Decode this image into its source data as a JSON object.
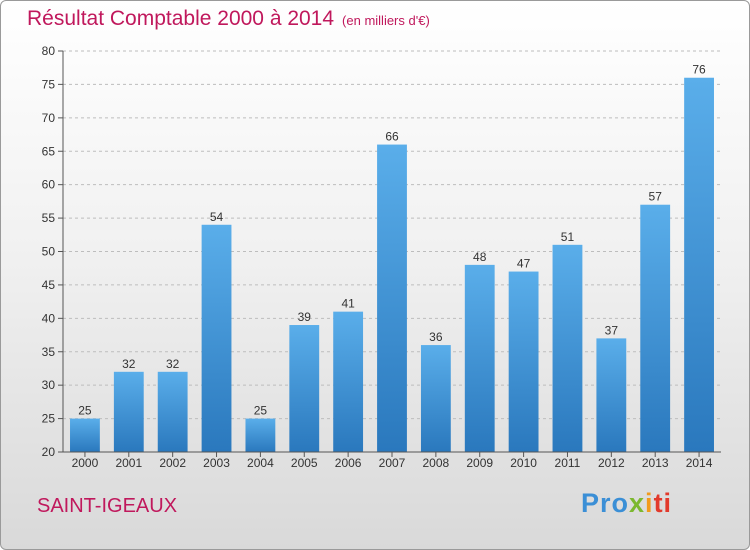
{
  "title": "Résultat Comptable 2000 à 2014",
  "subtitle": "(en milliers d'€)",
  "commune": "SAINT-IGEAUX",
  "logo": {
    "p1": "Pro",
    "p2": "x",
    "p3": "i",
    "p4": "ti"
  },
  "colors": {
    "bar": "#3a8fd8",
    "title": "#c0185c",
    "axis": "#555555",
    "grid": "#bdbdbd"
  },
  "chart_data": {
    "type": "bar",
    "title": "Résultat Comptable 2000 à 2014",
    "subtitle": "(en milliers d'€)",
    "categories": [
      "2000",
      "2001",
      "2002",
      "2003",
      "2004",
      "2005",
      "2006",
      "2007",
      "2008",
      "2009",
      "2010",
      "2011",
      "2012",
      "2013",
      "2014"
    ],
    "values": [
      25,
      32,
      32,
      54,
      25,
      39,
      41,
      66,
      36,
      48,
      47,
      51,
      37,
      57,
      76
    ],
    "ylim": [
      20,
      80
    ],
    "yticks": [
      20,
      25,
      30,
      35,
      40,
      45,
      50,
      55,
      60,
      65,
      70,
      75,
      80
    ],
    "grid": true,
    "data_labels": true
  }
}
